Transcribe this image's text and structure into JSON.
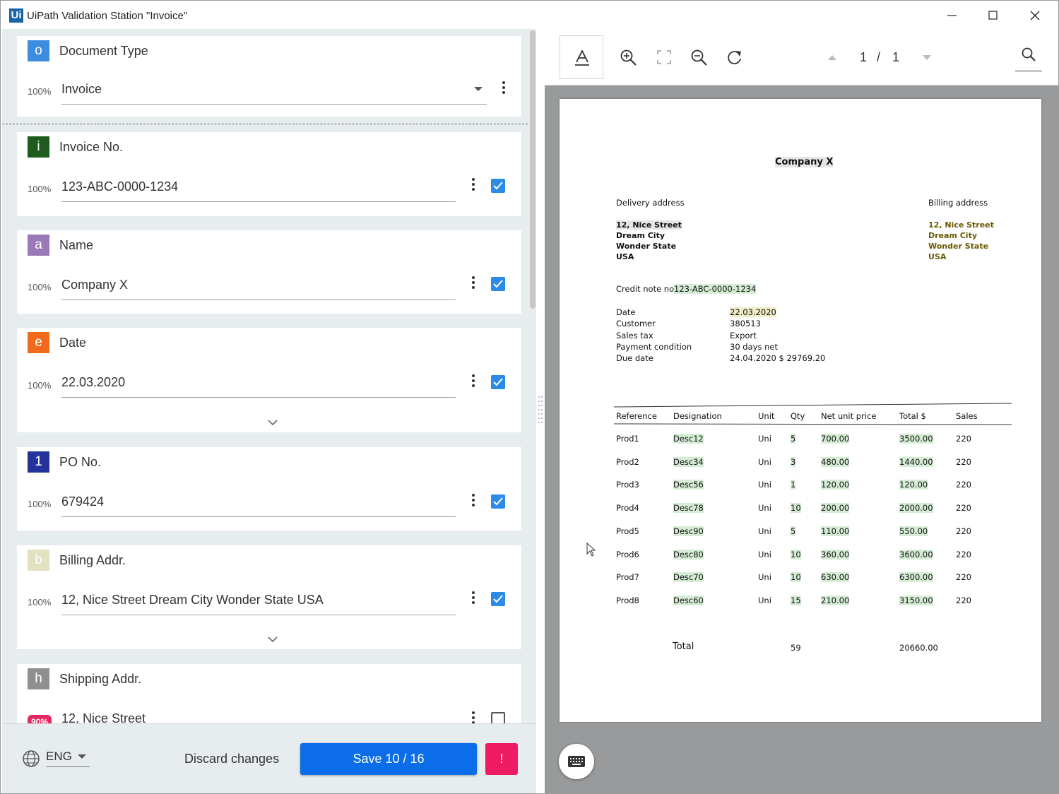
{
  "window": {
    "title": "UiPath Validation Station \"Invoice\"",
    "logo": "Ui"
  },
  "fields": [
    {
      "badge": "o",
      "badge_color": "#3b8de0",
      "name": "Document Type",
      "confidence": "100%",
      "value": "Invoice"
    },
    {
      "badge": "i",
      "badge_color": "#1e5c1e",
      "name": "Invoice No.",
      "confidence": "100%",
      "value": "123-ABC-0000-1234"
    },
    {
      "badge": "a",
      "badge_color": "#9b78b8",
      "name": "Name",
      "confidence": "100%",
      "value": "Company X"
    },
    {
      "badge": "e",
      "badge_color": "#f06a1b",
      "name": "Date",
      "confidence": "100%",
      "value": "22.03.2020"
    },
    {
      "badge": "1",
      "badge_color": "#24339c",
      "name": "PO No.",
      "confidence": "100%",
      "value": "679424"
    },
    {
      "badge": "b",
      "badge_color": "#e2e2c0",
      "name": "Billing Addr.",
      "confidence": "100%",
      "value": "12, Nice Street Dream City Wonder State USA"
    },
    {
      "badge": "h",
      "badge_color": "#8f8f8f",
      "name": "Shipping Addr.",
      "confidence": "90%",
      "value": "12, Nice Street"
    }
  ],
  "bottom": {
    "language": "ENG",
    "discard": "Discard changes",
    "save": "Save 10 / 16",
    "alert": "!"
  },
  "viewer": {
    "page_current": "1",
    "page_sep": "/",
    "page_total": "1"
  },
  "document": {
    "company": "Company X",
    "delivery_label": "Delivery address",
    "billing_label": "Billing address",
    "delivery_lines": [
      "12, Nice Street",
      "Dream City",
      "Wonder State",
      "USA"
    ],
    "billing_lines": [
      "12, Nice Street",
      "Dream City",
      "Wonder State",
      "USA"
    ],
    "credit_label": "Credit note no",
    "credit_no": "123-ABC-0000-1234",
    "info": [
      {
        "label": "Date",
        "value": "22.03.2020"
      },
      {
        "label": "Customer",
        "value": "380513"
      },
      {
        "label": "Sales tax",
        "value": "Export"
      },
      {
        "label": "Payment condition",
        "value": "30 days net"
      },
      {
        "label": "Due date",
        "value": "24.04.2020 $ 29769.20"
      }
    ],
    "table_headers": [
      "Reference",
      "Designation",
      "Unit",
      "Qty",
      "Net unit price",
      "Total $",
      "Sales"
    ],
    "rows": [
      [
        "Prod1",
        "Desc12",
        "Uni",
        "5",
        "700.00",
        "3500.00",
        "220"
      ],
      [
        "Prod2",
        "Desc34",
        "Uni",
        "3",
        "480.00",
        "1440.00",
        "220"
      ],
      [
        "Prod3",
        "Desc56",
        "Uni",
        "1",
        "120.00",
        "120.00",
        "220"
      ],
      [
        "Prod4",
        "Desc78",
        "Uni",
        "10",
        "200.00",
        "2000.00",
        "220"
      ],
      [
        "Prod5",
        "Desc90",
        "Uni",
        "5",
        "110.00",
        "550.00",
        "220"
      ],
      [
        "Prod6",
        "Desc80",
        "Uni",
        "10",
        "360.00",
        "3600.00",
        "220"
      ],
      [
        "Prod7",
        "Desc70",
        "Uni",
        "10",
        "630.00",
        "6300.00",
        "220"
      ],
      [
        "Prod8",
        "Desc60",
        "Uni",
        "15",
        "210.00",
        "3150.00",
        "220"
      ]
    ],
    "total_label": "Total",
    "total_qty": "59",
    "total_amount": "20660.00"
  }
}
